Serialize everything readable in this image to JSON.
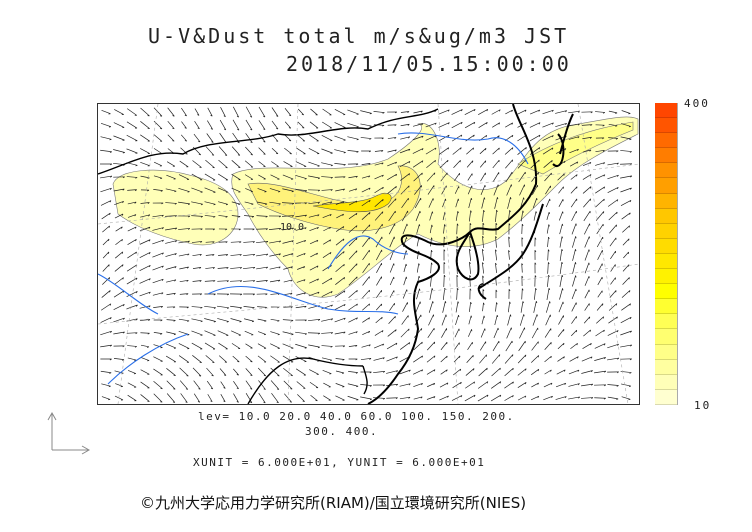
{
  "title": {
    "line1": "U-V&Dust total m/s&ug/m3 JST",
    "line2": "2018/11/05.15:00:00"
  },
  "colorbar": {
    "max_label": "400",
    "min_label": "10",
    "colors": [
      "#ff4600",
      "#ff5500",
      "#ff6a00",
      "#ff7d00",
      "#ff9200",
      "#ff9f00",
      "#ffb400",
      "#ffc700",
      "#ffd200",
      "#ffdc00",
      "#ffe800",
      "#fff200",
      "#ffff00",
      "#ffff30",
      "#ffff55",
      "#ffff70",
      "#ffff88",
      "#ffffa0",
      "#ffffb8",
      "#ffffd0"
    ]
  },
  "levels": {
    "line1": "lev= 10.0 20.0 40.0 60.0 100. 150. 200.",
    "line2": "300. 400."
  },
  "units": "XUNIT = 6.000E+01, YUNIT = 6.000E+01",
  "credit": "©九州大学応用力学研究所(RIAM)/国立環境研究所(NIES)",
  "map": {
    "contour_label": "10.0"
  }
}
